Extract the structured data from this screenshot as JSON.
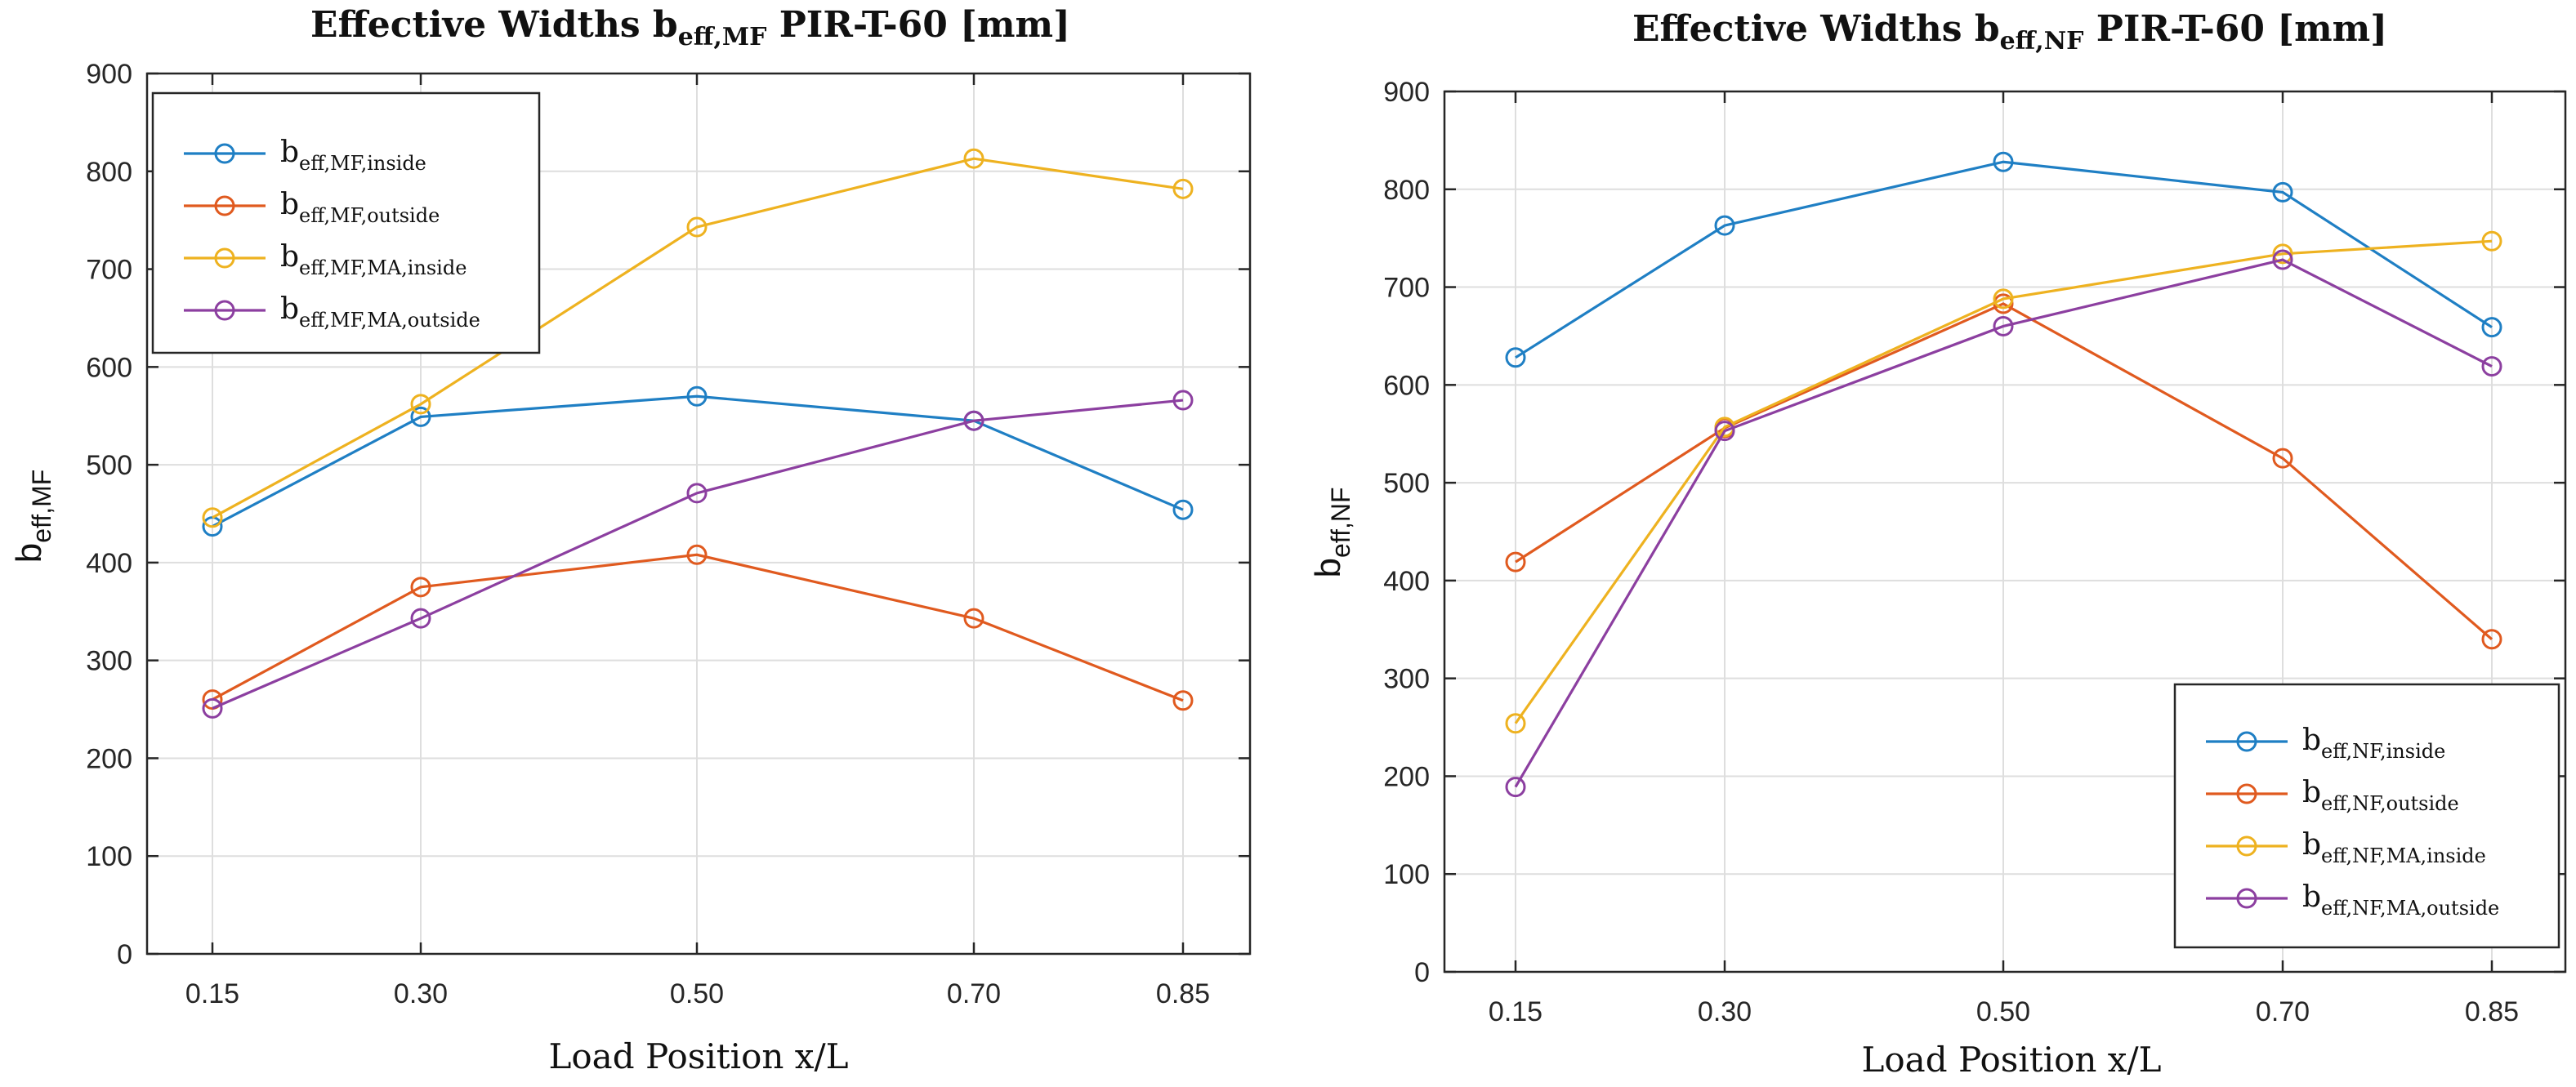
{
  "chart_data": [
    {
      "type": "line",
      "title": {
        "main": "Effective Widths b",
        "sub": "eff,MF",
        "rest": " PIR-T-60 [mm]"
      },
      "xlabel": "Load Position x/L",
      "ylabel": {
        "main": "b",
        "sub": "eff,MF"
      },
      "x": [
        0.15,
        0.3,
        0.5,
        0.7,
        0.85
      ],
      "xticks": [
        "0.15",
        "0.30",
        "0.50",
        "0.70",
        "0.85"
      ],
      "ylim": [
        0,
        900
      ],
      "yticks": [
        0,
        100,
        200,
        300,
        400,
        500,
        600,
        700,
        800,
        900
      ],
      "yticklabels": [
        "0",
        "100",
        "200",
        "300",
        "400",
        "500",
        "600",
        "700",
        "800",
        "900"
      ],
      "grid": true,
      "legend": "top-left",
      "series": [
        {
          "name": "b",
          "sub": "eff,MF,inside",
          "color": "#1f7fc4",
          "values": [
            437,
            549,
            570,
            545,
            454
          ]
        },
        {
          "name": "b",
          "sub": "eff,MF,outside",
          "color": "#e05a1f",
          "values": [
            260,
            375,
            408,
            343,
            259
          ]
        },
        {
          "name": "b",
          "sub": "eff,MF,MA,inside",
          "color": "#eeb220",
          "values": [
            446,
            562,
            743,
            813,
            782
          ]
        },
        {
          "name": "b",
          "sub": "eff,MF,MA,outside",
          "color": "#8c3fa0",
          "values": [
            251,
            343,
            471,
            545,
            566
          ]
        }
      ]
    },
    {
      "type": "line",
      "title": {
        "main": "Effective Widths b",
        "sub": "eff,NF",
        "rest": " PIR-T-60 [mm]"
      },
      "xlabel": "Load Position x/L",
      "ylabel": {
        "main": "b",
        "sub": "eff,NF"
      },
      "x": [
        0.15,
        0.3,
        0.5,
        0.7,
        0.85
      ],
      "xticks": [
        "0.15",
        "0.30",
        "0.50",
        "0.70",
        "0.85"
      ],
      "ylim": [
        0,
        900
      ],
      "yticks": [
        0,
        100,
        200,
        300,
        400,
        500,
        600,
        700,
        800,
        900
      ],
      "yticklabels": [
        "0",
        "100",
        "200",
        "300",
        "400",
        "500",
        "600",
        "700",
        "800",
        "900"
      ],
      "grid": true,
      "legend": "bottom-right",
      "series": [
        {
          "name": "b",
          "sub": "eff,NF,inside",
          "color": "#1f7fc4",
          "values": [
            628,
            763,
            828,
            797,
            659
          ]
        },
        {
          "name": "b",
          "sub": "eff,NF,outside",
          "color": "#e05a1f",
          "values": [
            419,
            556,
            683,
            525,
            340
          ]
        },
        {
          "name": "b",
          "sub": "eff,NF,MA,inside",
          "color": "#eeb220",
          "values": [
            254,
            557,
            688,
            734,
            747
          ]
        },
        {
          "name": "b",
          "sub": "eff,NF,MA,outside",
          "color": "#8c3fa0",
          "values": [
            189,
            553,
            660,
            728,
            619
          ]
        }
      ]
    }
  ]
}
